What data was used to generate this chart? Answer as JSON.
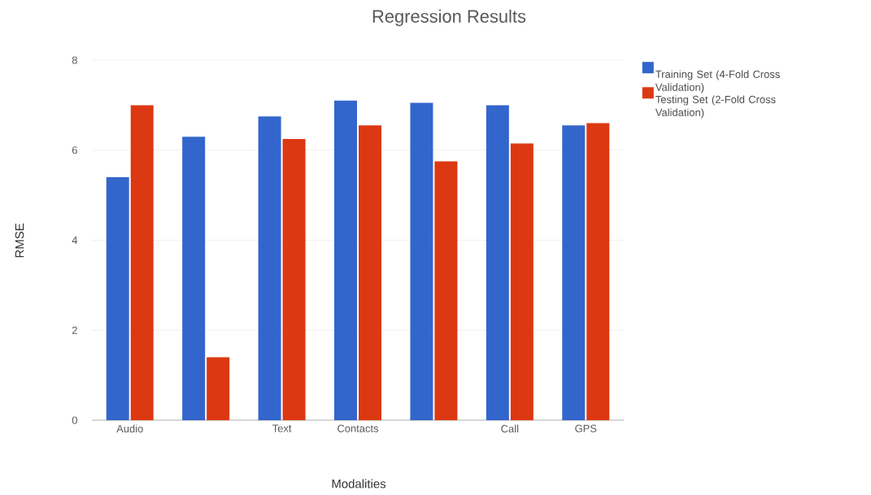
{
  "chart_data": {
    "type": "bar",
    "title": "Regression Results",
    "xlabel": "Modalities",
    "ylabel": "RMSE",
    "categories": [
      "Audio",
      null,
      "Text",
      "Contacts",
      null,
      "Call",
      "GPS"
    ],
    "series": [
      {
        "name": "Training Set (4-Fold Cross Validation)",
        "color": "#3366cc",
        "values": [
          5.4,
          6.3,
          6.75,
          7.1,
          7.05,
          7.0,
          6.55
        ]
      },
      {
        "name": "Testing Set (2-Fold Cross Validation)",
        "color": "#dc3912",
        "values": [
          7.0,
          1.4,
          6.25,
          6.55,
          5.75,
          6.15,
          6.6
        ]
      }
    ],
    "ylim": [
      0,
      8
    ],
    "yticks": [
      0,
      2,
      4,
      6,
      8
    ],
    "grid": "y",
    "legend": "top right"
  }
}
